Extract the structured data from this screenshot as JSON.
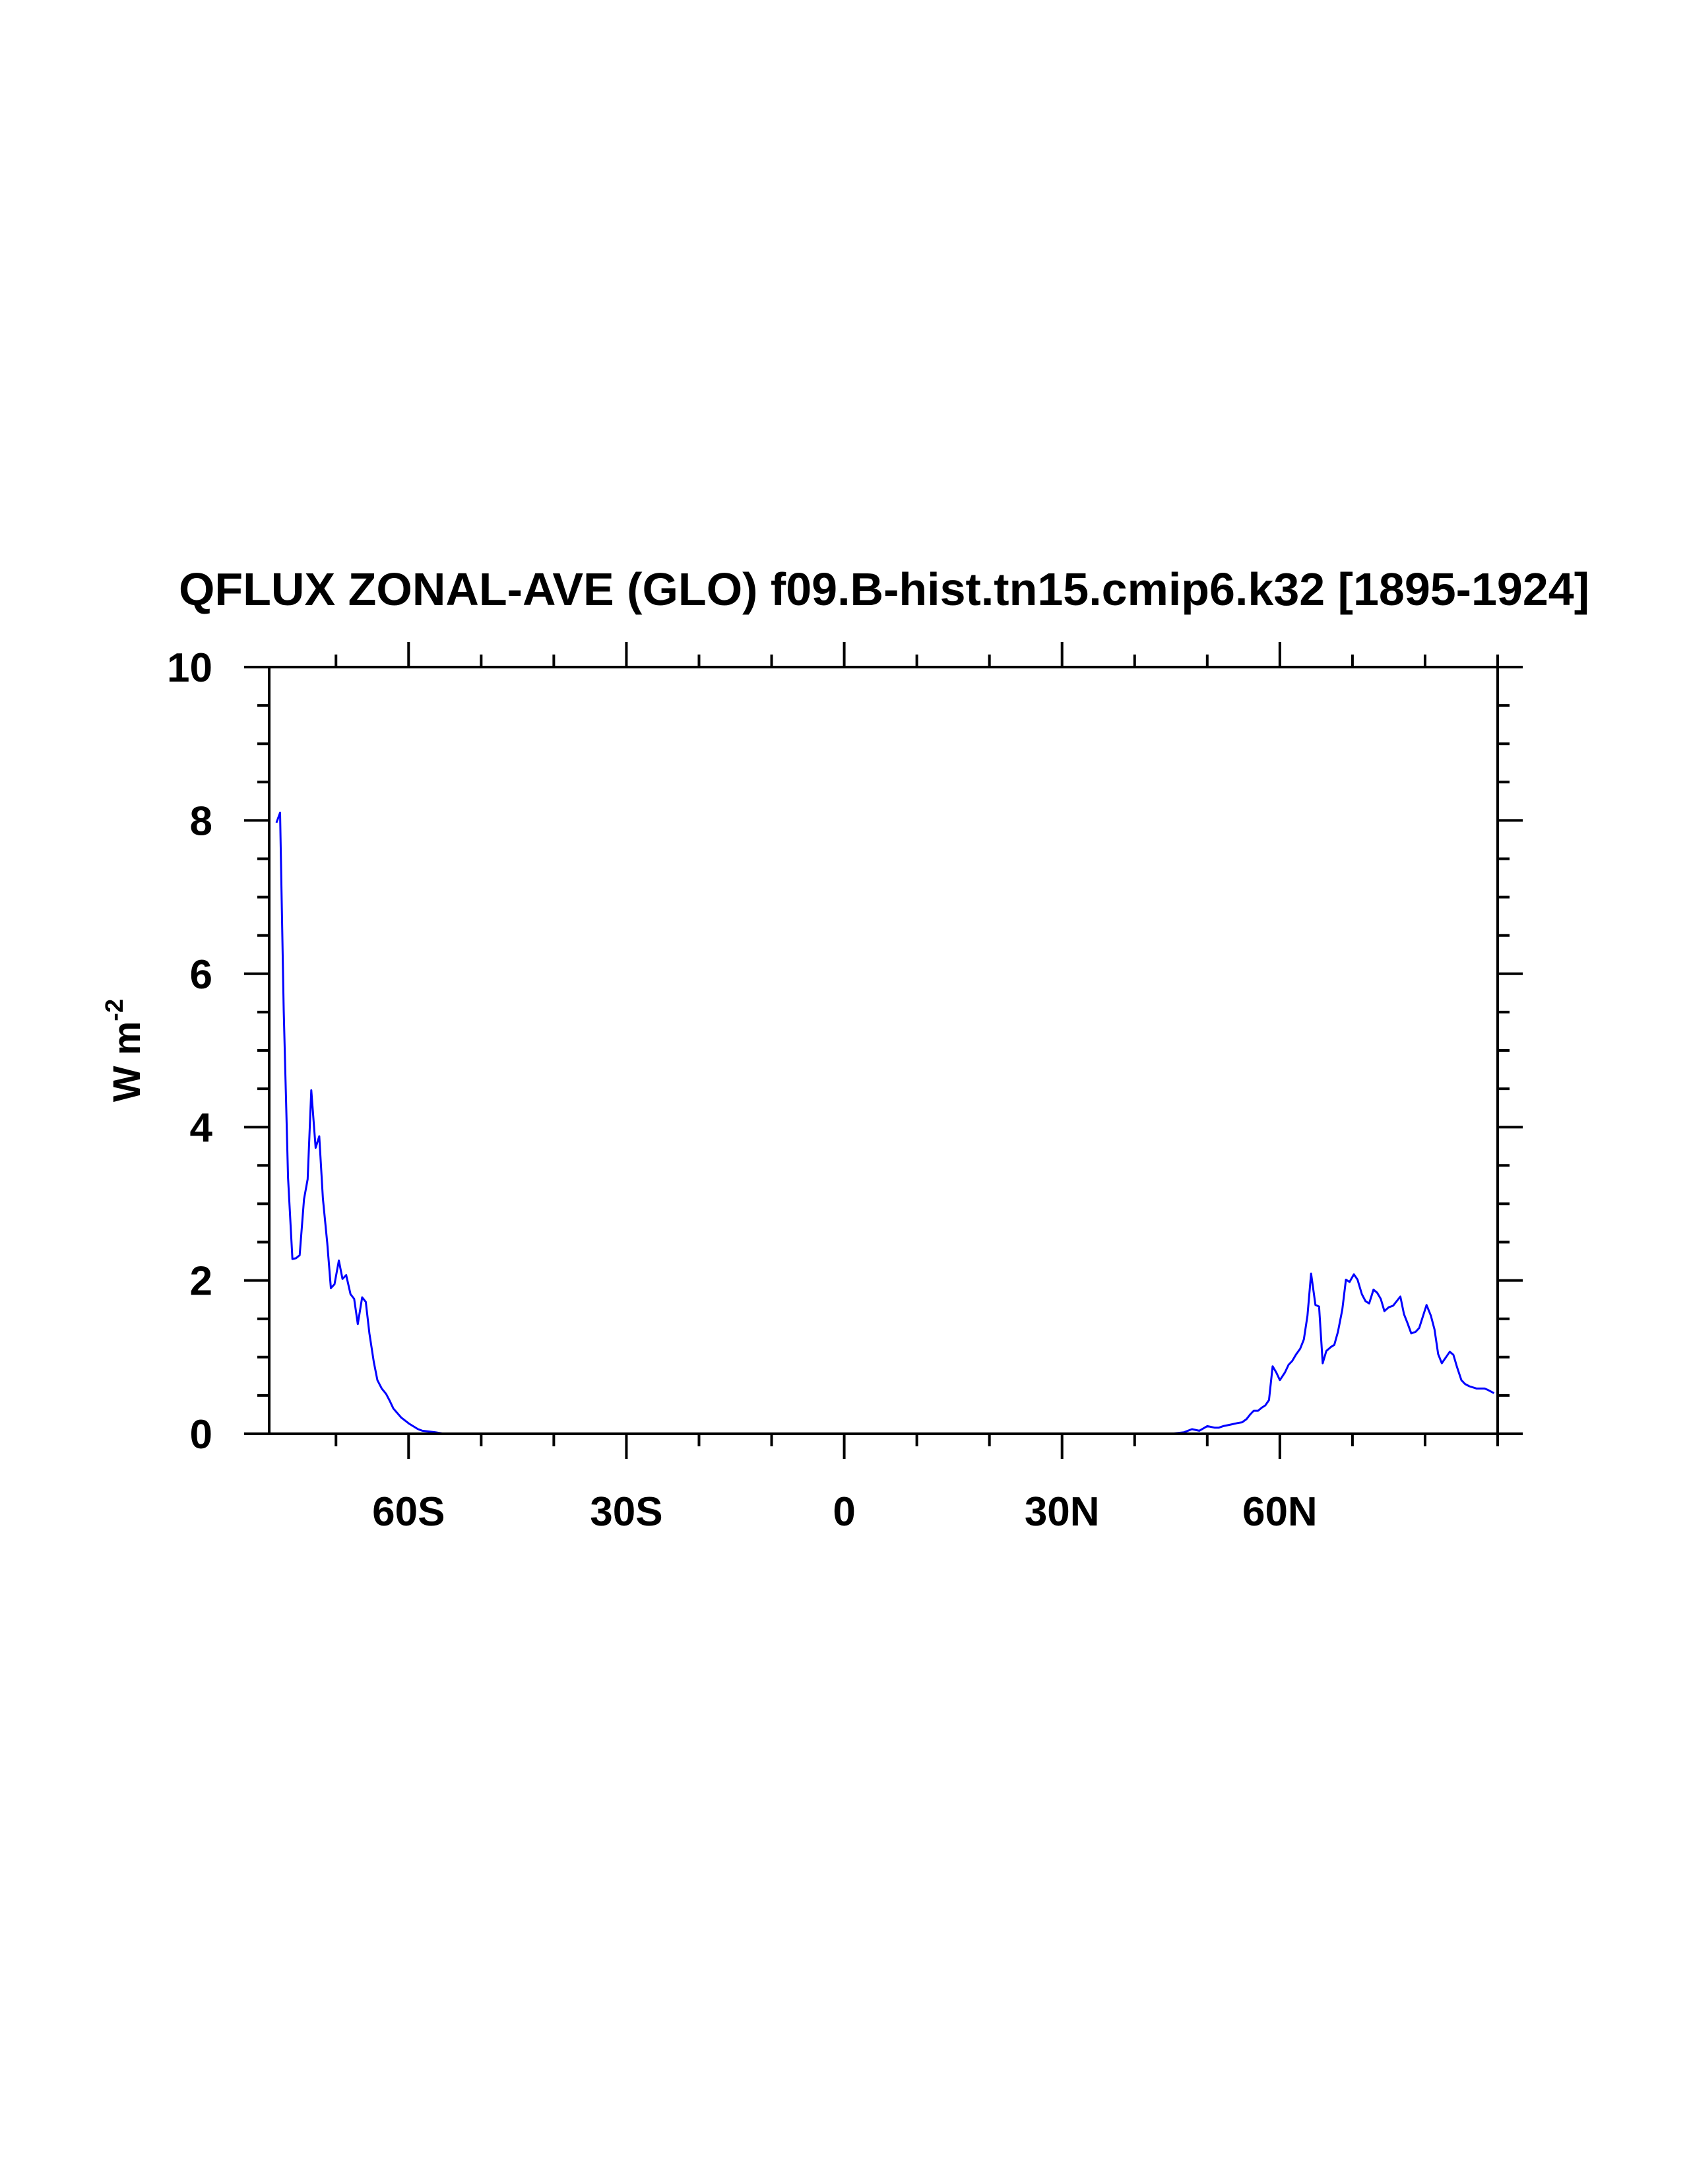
{
  "chart_data": {
    "type": "line",
    "title": "QFLUX ZONAL-AVE (GLO) f09.B-hist.tn15.cmip6.k32 [1895-1924]",
    "xlabel": "",
    "ylabel": "W m",
    "ylabel_superscript": "-2",
    "xlim": [
      -79.2,
      90
    ],
    "ylim": [
      0,
      10
    ],
    "grid": false,
    "line_color": "#0000ff",
    "x_ticks": [
      {
        "value": -60,
        "label": "60S"
      },
      {
        "value": -30,
        "label": "30S"
      },
      {
        "value": 0,
        "label": "0"
      },
      {
        "value": 30,
        "label": "30N"
      },
      {
        "value": 60,
        "label": "60N"
      }
    ],
    "x_minor_step": 10,
    "y_ticks": [
      {
        "value": 0,
        "label": "0"
      },
      {
        "value": 2,
        "label": "2"
      },
      {
        "value": 4,
        "label": "4"
      },
      {
        "value": 6,
        "label": "6"
      },
      {
        "value": 8,
        "label": "8"
      },
      {
        "value": 10,
        "label": "10"
      }
    ],
    "y_minor_step": 0.5,
    "series": [
      {
        "name": "QFLUX",
        "x": [
          -78.2,
          -77.7,
          -77.2,
          -76.6,
          -76.0,
          -75.5,
          -75.0,
          -74.4,
          -73.9,
          -73.4,
          -72.8,
          -72.3,
          -71.8,
          -71.2,
          -70.7,
          -70.2,
          -69.6,
          -69.1,
          -68.6,
          -68.0,
          -67.5,
          -67.0,
          -66.4,
          -65.9,
          -65.4,
          -64.8,
          -64.3,
          -63.7,
          -63.1,
          -62.6,
          -62.1,
          -61.0,
          -59.9,
          -58.7,
          -58.1,
          -56.3,
          -55.1,
          45.0,
          46.8,
          47.9,
          48.9,
          50.0,
          51.0,
          51.6,
          52.2,
          53.2,
          54.2,
          54.8,
          55.4,
          55.9,
          56.4,
          57.0,
          57.5,
          58.0,
          58.5,
          59.0,
          59.5,
          60.0,
          60.7,
          61.2,
          61.7,
          62.2,
          62.8,
          63.3,
          63.8,
          64.3,
          64.9,
          65.4,
          65.9,
          66.4,
          67.0,
          67.5,
          68.0,
          68.6,
          69.1,
          69.6,
          70.2,
          70.7,
          71.3,
          71.8,
          72.3,
          72.9,
          73.4,
          73.9,
          74.4,
          75.0,
          75.6,
          76.6,
          77.1,
          77.6,
          78.1,
          78.7,
          79.2,
          80.2,
          80.8,
          81.3,
          81.8,
          82.3,
          83.4,
          83.9,
          84.4,
          85.0,
          85.5,
          86.1,
          87.1,
          88.2,
          88.7,
          89.5
        ],
        "y": [
          7.97,
          8.1,
          5.53,
          3.34,
          2.28,
          2.29,
          2.33,
          3.06,
          3.32,
          4.48,
          3.73,
          3.88,
          3.07,
          2.49,
          1.9,
          1.95,
          2.26,
          2.02,
          2.07,
          1.82,
          1.76,
          1.43,
          1.78,
          1.72,
          1.31,
          0.94,
          0.7,
          0.59,
          0.52,
          0.43,
          0.33,
          0.21,
          0.13,
          0.06,
          0.04,
          0.02,
          0.0,
          0.0,
          0.02,
          0.06,
          0.04,
          0.1,
          0.08,
          0.08,
          0.1,
          0.12,
          0.14,
          0.15,
          0.19,
          0.25,
          0.3,
          0.3,
          0.34,
          0.37,
          0.44,
          0.88,
          0.8,
          0.7,
          0.8,
          0.9,
          0.95,
          1.03,
          1.11,
          1.23,
          1.54,
          2.09,
          1.68,
          1.66,
          0.92,
          1.08,
          1.13,
          1.16,
          1.33,
          1.62,
          2.01,
          1.98,
          2.08,
          2.01,
          1.82,
          1.73,
          1.7,
          1.88,
          1.84,
          1.76,
          1.6,
          1.65,
          1.67,
          1.79,
          1.56,
          1.44,
          1.31,
          1.33,
          1.38,
          1.68,
          1.54,
          1.36,
          1.04,
          0.92,
          1.07,
          1.03,
          0.87,
          0.7,
          0.65,
          0.62,
          0.59,
          0.59,
          0.57,
          0.53
        ]
      }
    ]
  }
}
